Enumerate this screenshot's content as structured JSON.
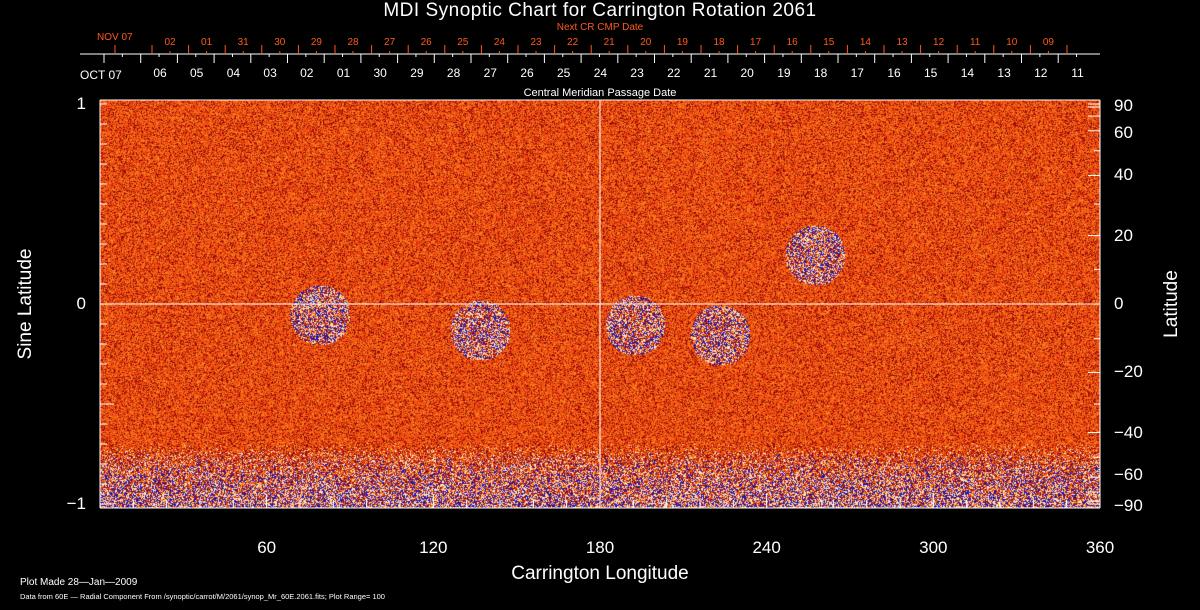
{
  "chart_data": {
    "type": "heatmap",
    "title": "MDI Synoptic Chart for Carrington Rotation 2061",
    "xlabel": "Carrington Longitude",
    "ylabel_left": "Sine Latitude",
    "ylabel_right": "Latitude",
    "xlim": [
      0,
      360
    ],
    "ylim": [
      -1,
      1
    ],
    "x_ticks": [
      "60",
      "120",
      "180",
      "240",
      "300",
      "360"
    ],
    "y_ticks_left": [
      {
        "v": 1,
        "label": "1"
      },
      {
        "v": 0,
        "label": "0"
      },
      {
        "v": -1,
        "label": "−1"
      }
    ],
    "y_ticks_right": [
      {
        "v": 90,
        "label": "90"
      },
      {
        "v": 60,
        "label": "60"
      },
      {
        "v": 40,
        "label": "40"
      },
      {
        "v": 20,
        "label": "20"
      },
      {
        "v": 0,
        "label": "0"
      },
      {
        "v": -20,
        "label": "−20"
      },
      {
        "v": -40,
        "label": "−40"
      },
      {
        "v": -60,
        "label": "−60"
      },
      {
        "v": -90,
        "label": "−90"
      }
    ],
    "top_axis_white": {
      "caption": "Central Meridian Passage Date",
      "start_label": "OCT 07",
      "labels": [
        "06",
        "05",
        "04",
        "03",
        "02",
        "01",
        "30",
        "29",
        "28",
        "27",
        "26",
        "25",
        "24",
        "23",
        "22",
        "21",
        "20",
        "19",
        "18",
        "17",
        "16",
        "15",
        "14",
        "13",
        "12",
        "11"
      ]
    },
    "top_axis_red": {
      "caption": "Next CR CMP Date",
      "start_label": "NOV 07",
      "labels": [
        "02",
        "01",
        "31",
        "30",
        "29",
        "28",
        "27",
        "26",
        "25",
        "24",
        "23",
        "22",
        "21",
        "20",
        "19",
        "18",
        "17",
        "16",
        "15",
        "14",
        "13",
        "12",
        "11",
        "10",
        "09"
      ]
    },
    "colormap": {
      "base": "#e8441a",
      "dark": "#b01008",
      "bright": "#ffe060",
      "negative": "#1a1aa0"
    },
    "plot_range": 100,
    "footer": {
      "plot_made": "Plot Made 28—Jan—2009",
      "data_from": "Data from 60E — Radial Component From /synoptic/carrot/M/2061/synop_Mr_60E.2061.fits; Plot Range=  100"
    }
  }
}
